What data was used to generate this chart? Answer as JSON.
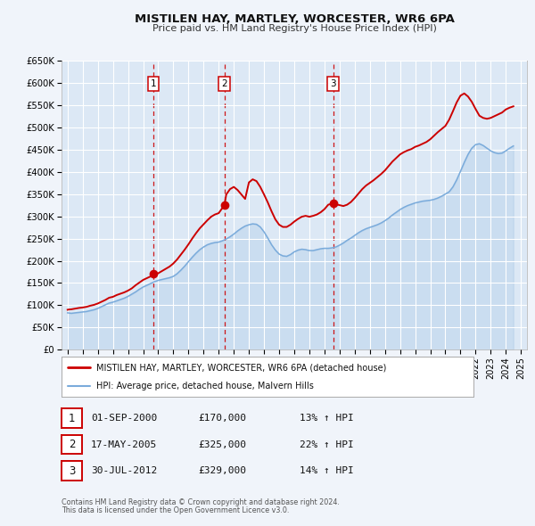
{
  "title": "MISTILEN HAY, MARTLEY, WORCESTER, WR6 6PA",
  "subtitle": "Price paid vs. HM Land Registry's House Price Index (HPI)",
  "background_color": "#f0f4fa",
  "plot_bg_color": "#dce8f5",
  "grid_color": "#ffffff",
  "ylim": [
    0,
    650000
  ],
  "yticks": [
    0,
    50000,
    100000,
    150000,
    200000,
    250000,
    300000,
    350000,
    400000,
    450000,
    500000,
    550000,
    600000,
    650000
  ],
  "ytick_labels": [
    "£0",
    "£50K",
    "£100K",
    "£150K",
    "£200K",
    "£250K",
    "£300K",
    "£350K",
    "£400K",
    "£450K",
    "£500K",
    "£550K",
    "£600K",
    "£650K"
  ],
  "xmin": 1994.6,
  "xmax": 2025.4,
  "xticks": [
    1995,
    1996,
    1997,
    1998,
    1999,
    2000,
    2001,
    2002,
    2003,
    2004,
    2005,
    2006,
    2007,
    2008,
    2009,
    2010,
    2011,
    2012,
    2013,
    2014,
    2015,
    2016,
    2017,
    2018,
    2019,
    2020,
    2021,
    2022,
    2023,
    2024,
    2025
  ],
  "property_color": "#cc0000",
  "hpi_color": "#7aabdb",
  "sale_marker_color": "#cc0000",
  "sale_marker_size": 7,
  "vline_color": "#cc0000",
  "legend_label_property": "MISTILEN HAY, MARTLEY, WORCESTER, WR6 6PA (detached house)",
  "legend_label_hpi": "HPI: Average price, detached house, Malvern Hills",
  "sales": [
    {
      "num": 1,
      "date_label": "01-SEP-2000",
      "date_x": 2000.67,
      "price": 170000,
      "price_label": "£170,000",
      "hpi_pct": "13%",
      "direction": "↑"
    },
    {
      "num": 2,
      "date_label": "17-MAY-2005",
      "date_x": 2005.38,
      "price": 325000,
      "price_label": "£325,000",
      "hpi_pct": "22%",
      "direction": "↑"
    },
    {
      "num": 3,
      "date_label": "30-JUL-2012",
      "date_x": 2012.58,
      "price": 329000,
      "price_label": "£329,000",
      "hpi_pct": "14%",
      "direction": "↑"
    }
  ],
  "footer_line1": "Contains HM Land Registry data © Crown copyright and database right 2024.",
  "footer_line2": "This data is licensed under the Open Government Licence v3.0.",
  "hpi_data_x": [
    1995.0,
    1995.25,
    1995.5,
    1995.75,
    1996.0,
    1996.25,
    1996.5,
    1996.75,
    1997.0,
    1997.25,
    1997.5,
    1997.75,
    1998.0,
    1998.25,
    1998.5,
    1998.75,
    1999.0,
    1999.25,
    1999.5,
    1999.75,
    2000.0,
    2000.25,
    2000.5,
    2000.75,
    2001.0,
    2001.25,
    2001.5,
    2001.75,
    2002.0,
    2002.25,
    2002.5,
    2002.75,
    2003.0,
    2003.25,
    2003.5,
    2003.75,
    2004.0,
    2004.25,
    2004.5,
    2004.75,
    2005.0,
    2005.25,
    2005.5,
    2005.75,
    2006.0,
    2006.25,
    2006.5,
    2006.75,
    2007.0,
    2007.25,
    2007.5,
    2007.75,
    2008.0,
    2008.25,
    2008.5,
    2008.75,
    2009.0,
    2009.25,
    2009.5,
    2009.75,
    2010.0,
    2010.25,
    2010.5,
    2010.75,
    2011.0,
    2011.25,
    2011.5,
    2011.75,
    2012.0,
    2012.25,
    2012.5,
    2012.75,
    2013.0,
    2013.25,
    2013.5,
    2013.75,
    2014.0,
    2014.25,
    2014.5,
    2014.75,
    2015.0,
    2015.25,
    2015.5,
    2015.75,
    2016.0,
    2016.25,
    2016.5,
    2016.75,
    2017.0,
    2017.25,
    2017.5,
    2017.75,
    2018.0,
    2018.25,
    2018.5,
    2018.75,
    2019.0,
    2019.25,
    2019.5,
    2019.75,
    2020.0,
    2020.25,
    2020.5,
    2020.75,
    2021.0,
    2021.25,
    2021.5,
    2021.75,
    2022.0,
    2022.25,
    2022.5,
    2022.75,
    2023.0,
    2023.25,
    2023.5,
    2023.75,
    2024.0,
    2024.25,
    2024.5
  ],
  "hpi_data_y": [
    83000,
    82000,
    83000,
    84000,
    85000,
    86000,
    88000,
    90000,
    93000,
    97000,
    101000,
    105000,
    107000,
    110000,
    113000,
    116000,
    120000,
    125000,
    130000,
    136000,
    141000,
    145000,
    149000,
    153000,
    156000,
    158000,
    160000,
    162000,
    165000,
    171000,
    179000,
    188000,
    198000,
    208000,
    217000,
    225000,
    231000,
    236000,
    239000,
    241000,
    242000,
    245000,
    249000,
    254000,
    260000,
    267000,
    273000,
    278000,
    281000,
    283000,
    282000,
    276000,
    265000,
    251000,
    236000,
    224000,
    215000,
    211000,
    210000,
    214000,
    220000,
    224000,
    226000,
    225000,
    223000,
    223000,
    225000,
    227000,
    228000,
    228000,
    229000,
    231000,
    235000,
    240000,
    246000,
    251000,
    257000,
    263000,
    268000,
    272000,
    275000,
    278000,
    281000,
    285000,
    290000,
    296000,
    303000,
    309000,
    315000,
    320000,
    324000,
    327000,
    330000,
    332000,
    334000,
    335000,
    336000,
    338000,
    341000,
    345000,
    350000,
    355000,
    366000,
    382000,
    401000,
    421000,
    439000,
    453000,
    461000,
    463000,
    459000,
    453000,
    447000,
    443000,
    441000,
    442000,
    447000,
    453000,
    458000
  ],
  "property_data_x": [
    1995.0,
    1995.08,
    1995.25,
    1995.5,
    1995.75,
    1996.0,
    1996.25,
    1996.5,
    1996.75,
    1997.0,
    1997.25,
    1997.5,
    1997.75,
    1998.0,
    1998.25,
    1998.5,
    1998.75,
    1999.0,
    1999.25,
    1999.5,
    1999.75,
    2000.0,
    2000.25,
    2000.5,
    2000.67,
    2000.75,
    2001.0,
    2001.25,
    2001.5,
    2001.75,
    2002.0,
    2002.25,
    2002.5,
    2002.75,
    2003.0,
    2003.25,
    2003.5,
    2003.75,
    2004.0,
    2004.25,
    2004.5,
    2004.75,
    2005.0,
    2005.38,
    2005.5,
    2005.75,
    2006.0,
    2006.25,
    2006.5,
    2006.75,
    2007.0,
    2007.25,
    2007.5,
    2007.75,
    2008.0,
    2008.25,
    2008.5,
    2008.75,
    2009.0,
    2009.25,
    2009.5,
    2009.75,
    2010.0,
    2010.25,
    2010.5,
    2010.75,
    2011.0,
    2011.25,
    2011.5,
    2011.75,
    2012.0,
    2012.25,
    2012.58,
    2012.75,
    2013.0,
    2013.25,
    2013.5,
    2013.75,
    2014.0,
    2014.25,
    2014.5,
    2014.75,
    2015.0,
    2015.25,
    2015.5,
    2015.75,
    2016.0,
    2016.25,
    2016.5,
    2016.75,
    2017.0,
    2017.25,
    2017.5,
    2017.75,
    2018.0,
    2018.25,
    2018.5,
    2018.75,
    2019.0,
    2019.25,
    2019.5,
    2019.75,
    2020.0,
    2020.25,
    2020.5,
    2020.75,
    2021.0,
    2021.25,
    2021.5,
    2021.75,
    2022.0,
    2022.25,
    2022.5,
    2022.75,
    2023.0,
    2023.25,
    2023.5,
    2023.75,
    2024.0,
    2024.25,
    2024.5
  ],
  "property_data_y": [
    90000,
    90500,
    91000,
    92500,
    94000,
    95000,
    96500,
    99000,
    101000,
    104000,
    108000,
    112000,
    117000,
    119000,
    123000,
    126000,
    129000,
    133000,
    138000,
    145000,
    151000,
    157000,
    161000,
    165000,
    170000,
    169000,
    172000,
    177000,
    182000,
    187000,
    194000,
    203000,
    214000,
    225000,
    237000,
    250000,
    262000,
    273000,
    282000,
    291000,
    299000,
    304000,
    307000,
    325000,
    349000,
    361000,
    366000,
    359000,
    349000,
    339000,
    376000,
    383000,
    379000,
    366000,
    349000,
    331000,
    311000,
    293000,
    281000,
    276000,
    276000,
    281000,
    288000,
    294000,
    299000,
    301000,
    299000,
    301000,
    304000,
    309000,
    316000,
    326000,
    329000,
    327000,
    325000,
    323000,
    326000,
    332000,
    341000,
    351000,
    361000,
    369000,
    375000,
    381000,
    388000,
    395000,
    403000,
    413000,
    423000,
    431000,
    439000,
    444000,
    448000,
    451000,
    456000,
    459000,
    463000,
    467000,
    473000,
    481000,
    489000,
    496000,
    503000,
    517000,
    536000,
    556000,
    571000,
    576000,
    569000,
    557000,
    541000,
    526000,
    521000,
    519000,
    521000,
    525000,
    529000,
    533000,
    540000,
    544000,
    547000
  ]
}
